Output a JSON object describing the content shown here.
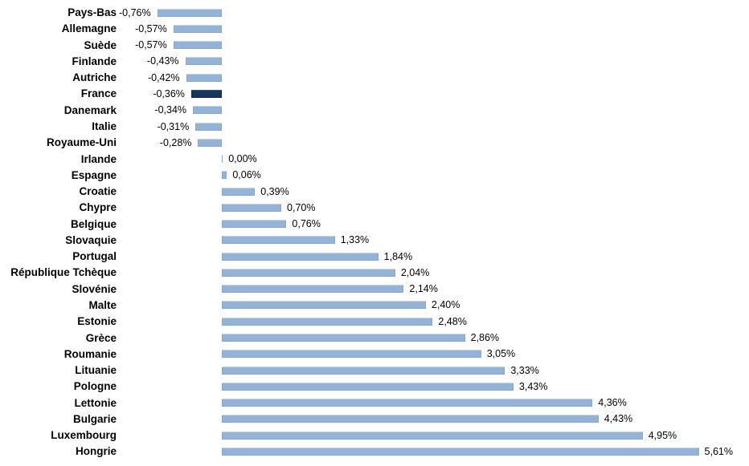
{
  "chart_data": {
    "type": "bar",
    "orientation": "horizontal",
    "title": "",
    "xlabel": "",
    "ylabel": "",
    "unit": "%",
    "grid": false,
    "legend": false,
    "axis_lines": false,
    "value_label_position": "outside-end",
    "baseline": 0,
    "xlim": [
      -0.9,
      6.2
    ],
    "highlight_category": "France",
    "categories": [
      "Pays-Bas",
      "Allemagne",
      "Suède",
      "Finlande",
      "Autriche",
      "France",
      "Danemark",
      "Italie",
      "Royaume-Uni",
      "Irlande",
      "Espagne",
      "Croatie",
      "Chypre",
      "Belgique",
      "Slovaquie",
      "Portugal",
      "République Tchèque",
      "Slovénie",
      "Malte",
      "Estonie",
      "Grèce",
      "Roumanie",
      "Lituanie",
      "Pologne",
      "Lettonie",
      "Bulgarie",
      "Luxembourg",
      "Hongrie"
    ],
    "values": [
      -0.76,
      -0.57,
      -0.57,
      -0.43,
      -0.42,
      -0.36,
      -0.34,
      -0.31,
      -0.28,
      0.0,
      0.06,
      0.39,
      0.7,
      0.76,
      1.33,
      1.84,
      2.04,
      2.14,
      2.4,
      2.48,
      2.86,
      3.05,
      3.33,
      3.43,
      4.36,
      4.43,
      4.95,
      5.61
    ],
    "value_labels": [
      "-0,76%",
      "-0,57%",
      "-0,57%",
      "-0,43%",
      "-0,42%",
      "-0,36%",
      "-0,34%",
      "-0,31%",
      "-0,28%",
      "0,00%",
      "0,06%",
      "0,39%",
      "0,70%",
      "0,76%",
      "1,33%",
      "1,84%",
      "2,04%",
      "2,14%",
      "2,40%",
      "2,48%",
      "2,86%",
      "3,05%",
      "3,33%",
      "3,43%",
      "4,36%",
      "4,43%",
      "4,95%",
      "5,61%"
    ],
    "colors": {
      "bar": "#95B3D7",
      "highlight_bar": "#17375E",
      "label_text": "#000000",
      "value_text": "#000000",
      "background": "#FFFFFF"
    }
  }
}
